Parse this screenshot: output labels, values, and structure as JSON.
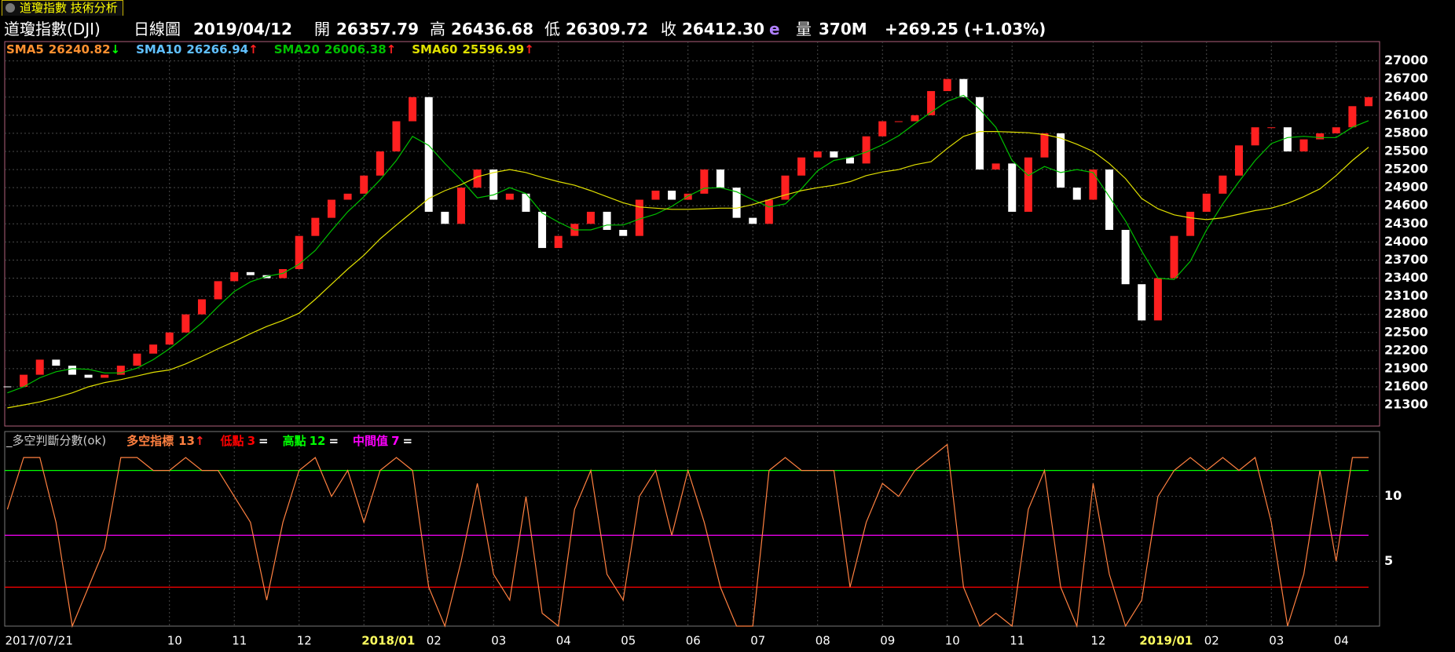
{
  "header": {
    "tab": "道瓊指數 技術分析",
    "symbol": "道瓊指數(DJI)",
    "period": "日線圖",
    "date": "2019/04/12",
    "open_label": "開",
    "open": "26357.79",
    "high_label": "高",
    "high": "26436.68",
    "low_label": "低",
    "low": "26309.72",
    "close_label": "收",
    "close": "26412.30",
    "flag": "e",
    "volume_label": "量",
    "volume": "370M",
    "change": "+269.25 (+1.03%)"
  },
  "chart_data": [
    {
      "type": "candlestick",
      "up_color": "#ff2020",
      "down_color": "#ffffff",
      "values": [
        21600,
        21800,
        22050,
        21950,
        21800,
        21750,
        21800,
        21950,
        22150,
        22300,
        22500,
        22800,
        23050,
        23350,
        23500,
        23450,
        23400,
        23550,
        24100,
        24400,
        24700,
        24800,
        25100,
        25500,
        26000,
        26400,
        24500,
        24300,
        24900,
        25200,
        24700,
        24800,
        24500,
        23900,
        24100,
        24300,
        24500,
        24200,
        24100,
        24700,
        24850,
        24700,
        24800,
        25200,
        24900,
        24400,
        24300,
        24700,
        25100,
        25400,
        25500,
        25400,
        25300,
        25750,
        26000,
        26000,
        26100,
        26500,
        26700,
        26400,
        25200,
        25300,
        24500,
        25400,
        25800,
        24900,
        24700,
        25200,
        24200,
        23300,
        22700,
        23400,
        24100,
        24500,
        24800,
        25100,
        25600,
        25900,
        25900,
        25500,
        25700,
        25800,
        25900,
        26250,
        26400
      ],
      "indicators": [
        {
          "name": "SMA5",
          "color": "#ff9030",
          "last": "26240.82",
          "trend": "↓",
          "trend_color": "#00ff00"
        },
        {
          "name": "SMA10",
          "color": "#60c0ff",
          "last": "26266.94",
          "trend": "↑",
          "trend_color": "#ff2020"
        }
      ],
      "series": [
        {
          "name": "SMA20",
          "color": "#00c000",
          "last": "26006.38",
          "trend": "↑",
          "trend_color": "#ff2020",
          "values": [
            21500,
            21600,
            21750,
            21850,
            21900,
            21890,
            21830,
            21830,
            21910,
            22050,
            22230,
            22440,
            22660,
            22930,
            23180,
            23340,
            23430,
            23480,
            23630,
            23860,
            24190,
            24500,
            24750,
            25030,
            25350,
            25750,
            25600,
            25300,
            25030,
            24730,
            24780,
            24900,
            24800,
            24480,
            24330,
            24200,
            24200,
            24280,
            24280,
            24380,
            24460,
            24590,
            24760,
            24890,
            24900,
            24830,
            24700,
            24580,
            24630,
            24880,
            25180,
            25350,
            25400,
            25490,
            25610,
            25760,
            25960,
            26150,
            26330,
            26430,
            26200,
            25900,
            25350,
            25100,
            25250,
            25150,
            25200,
            25150,
            24750,
            24350,
            23850,
            23400,
            23380,
            23680,
            24200,
            24630,
            25000,
            25350,
            25630,
            25730,
            25750,
            25730,
            25730,
            25900,
            26010
          ]
        },
        {
          "name": "SMA60",
          "color": "#e0e000",
          "last": "25596.99",
          "trend": "↑",
          "trend_color": "#ff2020",
          "values": [
            21250,
            21300,
            21350,
            21420,
            21500,
            21600,
            21670,
            21720,
            21780,
            21840,
            21880,
            21980,
            22100,
            22230,
            22350,
            22480,
            22600,
            22700,
            22820,
            23050,
            23300,
            23550,
            23780,
            24050,
            24280,
            24500,
            24720,
            24850,
            24950,
            25080,
            25150,
            25200,
            25150,
            25070,
            25000,
            24940,
            24850,
            24750,
            24650,
            24580,
            24560,
            24540,
            24540,
            24550,
            24560,
            24560,
            24620,
            24700,
            24780,
            24850,
            24900,
            24940,
            25000,
            25100,
            25160,
            25200,
            25280,
            25330,
            25550,
            25750,
            25830,
            25830,
            25820,
            25810,
            25780,
            25720,
            25620,
            25500,
            25300,
            25050,
            24720,
            24550,
            24450,
            24400,
            24370,
            24400,
            24460,
            24520,
            24560,
            24640,
            24750,
            24880,
            25100,
            25350,
            25570
          ]
        }
      ],
      "ylim": [
        20950,
        27320
      ],
      "yticks": [
        21300,
        21600,
        21900,
        22200,
        22500,
        22800,
        23100,
        23400,
        23700,
        24000,
        24300,
        24600,
        24900,
        25200,
        25500,
        25800,
        26100,
        26400,
        26700,
        27000
      ],
      "grid": true
    },
    {
      "type": "line",
      "title": "_多空判斷分數(ok)",
      "categories": [
        "2017/07/21",
        null,
        null,
        null,
        null,
        null,
        null,
        null,
        null,
        null,
        "10",
        null,
        null,
        null,
        "11",
        null,
        null,
        null,
        "12",
        null,
        null,
        null,
        "2018/01",
        null,
        null,
        null,
        "02",
        null,
        null,
        null,
        "03",
        null,
        null,
        null,
        "04",
        null,
        null,
        null,
        "05",
        null,
        null,
        null,
        "06",
        null,
        null,
        null,
        "07",
        null,
        null,
        null,
        "08",
        null,
        null,
        null,
        "09",
        null,
        null,
        null,
        "10",
        null,
        null,
        null,
        "11",
        null,
        null,
        null,
        null,
        "12",
        null,
        null,
        "2019/01",
        null,
        null,
        null,
        "02",
        null,
        null,
        null,
        "03",
        null,
        null,
        null,
        "04",
        null,
        null
      ],
      "series": [
        {
          "name": "多空指標",
          "color": "#ff8040",
          "last": 13,
          "trend": "↑",
          "trend_color": "#ff2020",
          "values": [
            9,
            13,
            13,
            8,
            0,
            3,
            6,
            13,
            13,
            12,
            12,
            13,
            12,
            12,
            10,
            8,
            2,
            8,
            12,
            13,
            10,
            12,
            8,
            12,
            13,
            12,
            3,
            0,
            5,
            11,
            4,
            2,
            10,
            1,
            0,
            9,
            12,
            4,
            2,
            10,
            12,
            7,
            12,
            8,
            3,
            0,
            0,
            12,
            13,
            12,
            12,
            12,
            3,
            8,
            11,
            10,
            12,
            13,
            14,
            3,
            0,
            1,
            0,
            9,
            12,
            3,
            0,
            11,
            4,
            0,
            2,
            10,
            12,
            13,
            12,
            13,
            12,
            13,
            8,
            0,
            4,
            12,
            5,
            13,
            13
          ]
        }
      ],
      "levels": [
        {
          "name": "低點",
          "value": 3,
          "color": "#ff0000",
          "trend": "="
        },
        {
          "name": "高點",
          "value": 12,
          "color": "#00ff00",
          "trend": "="
        },
        {
          "name": "中間值",
          "value": 7,
          "color": "#ff00ff",
          "trend": "="
        }
      ],
      "ylim": [
        0,
        15
      ],
      "yticks": [
        5,
        10
      ],
      "grid": true
    }
  ]
}
